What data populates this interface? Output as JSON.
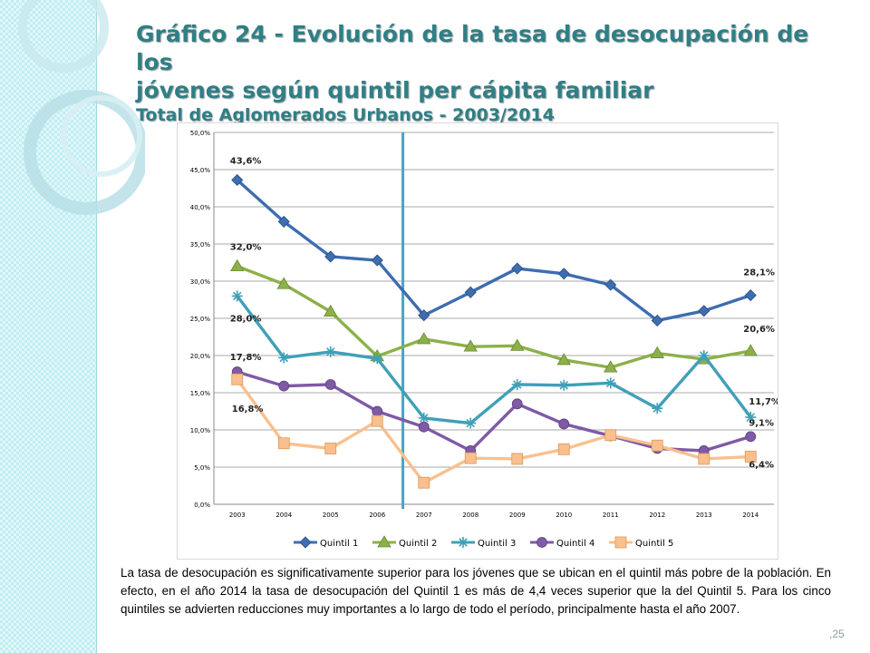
{
  "slide": {
    "title_line1": "Gráfico 24 - Evolución de la tasa de desocupación de los",
    "title_line2": "jóvenes según quintil per cápita familiar",
    "subtitle": "Total de Aglomerados Urbanos - 2003/2014",
    "description": "La tasa de desocupación es significativamente superior para los jóvenes que se ubican en el quintil más pobre de la población. En efecto, en el año 2014 la tasa de desocupación del Quintil 1 es más de 4,4 veces superior que la del Quintil 5.  Para los cinco quintiles se advierten reducciones muy importantes a lo largo de todo el período, principalmente hasta el año 2007.",
    "page_number": ",25"
  },
  "colors": {
    "title": "#2f7f86",
    "quintil1": "#3e6db0",
    "quintil2": "#8db04a",
    "quintil3": "#3fa0b8",
    "quintil4": "#7f5aa5",
    "quintil5": "#f9c08e",
    "divider": "#4ba3c3"
  },
  "chart_data": {
    "type": "line",
    "categories": [
      "2003",
      "2004",
      "2005",
      "2006",
      "2007",
      "2008",
      "2009",
      "2010",
      "2011",
      "2012",
      "2013",
      "2014"
    ],
    "ylim": [
      0,
      50
    ],
    "yticks": [
      "0,0%",
      "5,0%",
      "10,0%",
      "15,0%",
      "20,0%",
      "25,0%",
      "30,0%",
      "35,0%",
      "40,0%",
      "45,0%",
      "50,0%"
    ],
    "grid": true,
    "legend_position": "bottom",
    "divider_between": [
      "2006",
      "2007"
    ],
    "series": [
      {
        "name": "Quintil 1",
        "marker": "diamond",
        "color": "#3e6db0",
        "values": [
          43.6,
          38.0,
          33.3,
          32.8,
          25.4,
          28.5,
          31.7,
          31.0,
          29.5,
          24.7,
          26.0,
          28.1
        ],
        "labels": {
          "first": "43,6%",
          "last": "28,1%"
        }
      },
      {
        "name": "Quintil 2",
        "marker": "triangle",
        "color": "#8db04a",
        "values": [
          32.0,
          29.6,
          25.9,
          19.9,
          22.2,
          21.2,
          21.3,
          19.4,
          18.4,
          20.3,
          19.5,
          20.6
        ],
        "labels": {
          "first": "32,0%",
          "last": "20,6%"
        }
      },
      {
        "name": "Quintil 3",
        "marker": "star",
        "color": "#3fa0b8",
        "values": [
          28.0,
          19.7,
          20.5,
          19.6,
          11.6,
          10.9,
          16.1,
          16.0,
          16.3,
          12.9,
          20.0,
          11.7
        ],
        "labels": {
          "first": "28,0%",
          "last": "11,7%"
        }
      },
      {
        "name": "Quintil 4",
        "marker": "circle",
        "color": "#7f5aa5",
        "values": [
          17.8,
          15.9,
          16.1,
          12.5,
          10.4,
          7.2,
          13.5,
          10.8,
          9.2,
          7.5,
          7.2,
          9.1
        ],
        "labels": {
          "first": "17,8%",
          "last": "9,1%"
        }
      },
      {
        "name": "Quintil 5",
        "marker": "square",
        "color": "#f9c08e",
        "values": [
          16.8,
          8.2,
          7.5,
          11.2,
          2.9,
          6.2,
          6.1,
          7.4,
          9.3,
          7.9,
          6.1,
          6.4
        ],
        "labels": {
          "first": "16,8%",
          "last": "6,4%"
        }
      }
    ]
  }
}
